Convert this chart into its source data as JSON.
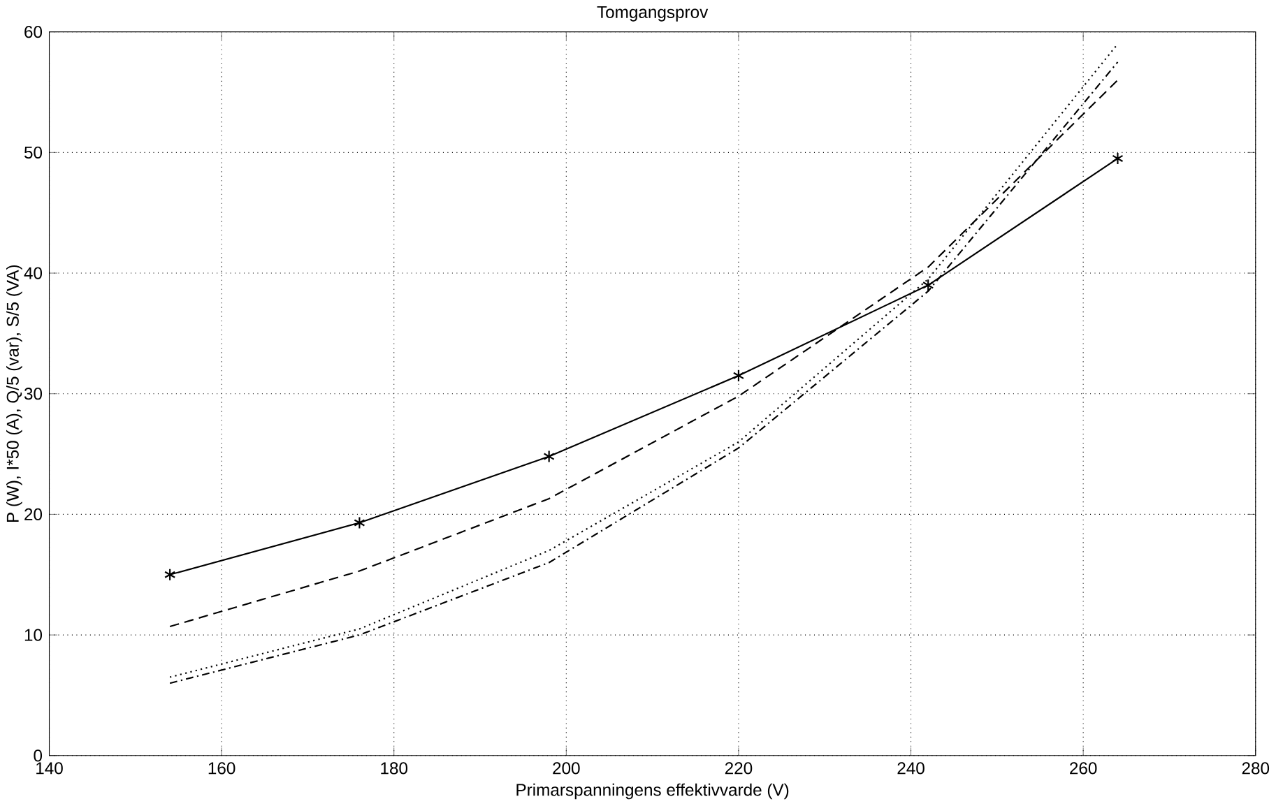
{
  "chart_data": {
    "type": "line",
    "title": "Tomgangsprov",
    "xlabel": "Primarspanningens effektivvarde (V)",
    "ylabel": "P (W), I*50 (A), Q/5 (var), S/5 (VA)",
    "x": [
      154,
      176,
      198,
      220,
      242,
      264
    ],
    "series": [
      {
        "color": "#000000",
        "marker": "cross",
        "line_style": "solid",
        "values": [
          15,
          19.3,
          24.8,
          31.5,
          39,
          49.5
        ]
      },
      {
        "color": "#000000",
        "marker": "none",
        "line_style": "dashed",
        "values": [
          10.7,
          15.3,
          21.3,
          29.8,
          40.5,
          56
        ]
      },
      {
        "color": "#000000",
        "marker": "none",
        "line_style": "dotted",
        "values": [
          6.5,
          10.5,
          17,
          26,
          39.5,
          59
        ]
      },
      {
        "color": "#000000",
        "marker": "none",
        "line_style": "dashdot",
        "values": [
          6,
          10,
          16,
          25.5,
          38.5,
          57.5
        ]
      }
    ],
    "xlim": [
      140,
      280
    ],
    "ylim": [
      0,
      60
    ],
    "xticks": [
      140,
      160,
      180,
      200,
      220,
      240,
      260,
      280
    ],
    "yticks": [
      0,
      10,
      20,
      30,
      40,
      50,
      60
    ],
    "grid": true
  }
}
